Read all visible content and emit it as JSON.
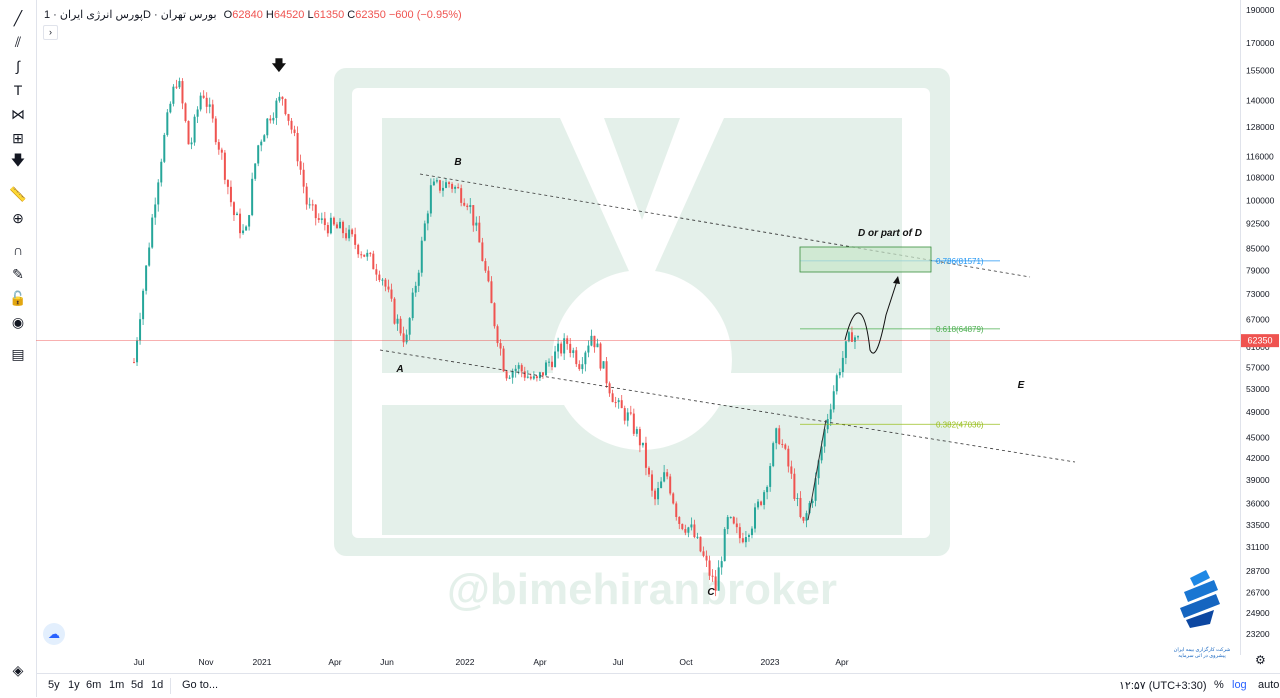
{
  "header": {
    "symbol": "پورس انرژی ایران",
    "interval": "1D",
    "exchange": "بورس تهران",
    "o_label": "O",
    "o": "62840",
    "h_label": "H",
    "h": "64520",
    "l_label": "L",
    "l": "61350",
    "c_label": "C",
    "c": "62350",
    "change": "−600 (−0.95%)"
  },
  "collapse_glyph": "›",
  "toolbar": [
    "trend-line-icon",
    "fib-icon",
    "brush-icon",
    "text-icon",
    "pattern-icon",
    "measure-tool-icon",
    "arrow-down-icon",
    "ruler-icon",
    "zoom-in-icon",
    "magnet-icon",
    "lock-drawing-icon",
    "lock-icon",
    "eye-icon",
    "trash-icon",
    "layers-icon"
  ],
  "bottom": {
    "ranges": [
      "5y",
      "1y",
      "6m",
      "1m",
      "5d",
      "1d"
    ],
    "goto": "Go to...",
    "time": "۱۲:۵۷ (UTC+3:30)",
    "percent": "%",
    "log": "log",
    "auto": "auto"
  },
  "watermark": "@bimehiranbroker",
  "logo_text_1": "شرکت کارگزاری بیمه ایران",
  "logo_text_2": "پیشروی در اتی سرمایه",
  "chart_data": {
    "type": "candlestick",
    "y_scale": "log",
    "y_ticks": [
      190000,
      170000,
      155000,
      140000,
      128000,
      116000,
      108000,
      100000,
      92500,
      85000,
      79000,
      73000,
      67000,
      61000,
      57000,
      53000,
      49000,
      45000,
      42000,
      39000,
      36000,
      33500,
      31100,
      28700,
      26700,
      24900,
      23200
    ],
    "x_ticks": [
      "Jul",
      "Nov",
      "2021",
      "Apr",
      "Jun",
      "2022",
      "Apr",
      "Jul",
      "Oct",
      "2023",
      "Apr"
    ],
    "last_price": 62350,
    "last_price_label": "62350",
    "colors": {
      "up": "#26a69a",
      "down": "#ef5350",
      "accent": "#2962ff"
    },
    "waves": [
      {
        "label": "A",
        "price": 56000
      },
      {
        "label": "B",
        "price": 112000
      },
      {
        "label": "C",
        "price": 25500
      },
      {
        "label": "D or part of D",
        "price": 91000
      },
      {
        "label": "E",
        "price": 52000
      }
    ],
    "fib_levels": [
      {
        "label": "0.786(81571)",
        "value": 81571,
        "color": "#2196f3"
      },
      {
        "label": "0.618(64879)",
        "value": 64879,
        "color": "#4caf50"
      },
      {
        "label": "0.382(47036)",
        "value": 47036,
        "color": "#9bbf21"
      }
    ],
    "price_path": [
      {
        "t": 0,
        "p": 58000
      },
      {
        "t": 2,
        "p": 80000
      },
      {
        "t": 4,
        "p": 110000
      },
      {
        "t": 6,
        "p": 140000
      },
      {
        "t": 7,
        "p": 152000
      },
      {
        "t": 9,
        "p": 118000
      },
      {
        "t": 11,
        "p": 146000
      },
      {
        "t": 14,
        "p": 118000
      },
      {
        "t": 16,
        "p": 96000
      },
      {
        "t": 18,
        "p": 88000
      },
      {
        "t": 20,
        "p": 120000
      },
      {
        "t": 22,
        "p": 134000
      },
      {
        "t": 24,
        "p": 142000
      },
      {
        "t": 26,
        "p": 122000
      },
      {
        "t": 28,
        "p": 98000
      },
      {
        "t": 30,
        "p": 93000
      },
      {
        "t": 34,
        "p": 90000
      },
      {
        "t": 37,
        "p": 84000
      },
      {
        "t": 40,
        "p": 78000
      },
      {
        "t": 42,
        "p": 68000
      },
      {
        "t": 44,
        "p": 62000
      },
      {
        "t": 46,
        "p": 80000
      },
      {
        "t": 48,
        "p": 104000
      },
      {
        "t": 51,
        "p": 106000
      },
      {
        "t": 54,
        "p": 100000
      },
      {
        "t": 56,
        "p": 85000
      },
      {
        "t": 58,
        "p": 68000
      },
      {
        "t": 60,
        "p": 56000
      },
      {
        "t": 62,
        "p": 57000
      },
      {
        "t": 65,
        "p": 54000
      },
      {
        "t": 67,
        "p": 58000
      },
      {
        "t": 70,
        "p": 62000
      },
      {
        "t": 72,
        "p": 58000
      },
      {
        "t": 74,
        "p": 64000
      },
      {
        "t": 76,
        "p": 56000
      },
      {
        "t": 78,
        "p": 50000
      },
      {
        "t": 80,
        "p": 48000
      },
      {
        "t": 82,
        "p": 44000
      },
      {
        "t": 84,
        "p": 36000
      },
      {
        "t": 86,
        "p": 40000
      },
      {
        "t": 88,
        "p": 34000
      },
      {
        "t": 90,
        "p": 33000
      },
      {
        "t": 92,
        "p": 30000
      },
      {
        "t": 94,
        "p": 27000
      },
      {
        "t": 96,
        "p": 34000
      },
      {
        "t": 98,
        "p": 32000
      },
      {
        "t": 100,
        "p": 34000
      },
      {
        "t": 102,
        "p": 38000
      },
      {
        "t": 104,
        "p": 46000
      },
      {
        "t": 106,
        "p": 40000
      },
      {
        "t": 108,
        "p": 33000
      },
      {
        "t": 110,
        "p": 38000
      },
      {
        "t": 112,
        "p": 48000
      },
      {
        "t": 114,
        "p": 57000
      },
      {
        "t": 116,
        "p": 64000
      },
      {
        "t": 117,
        "p": 62350
      }
    ]
  }
}
